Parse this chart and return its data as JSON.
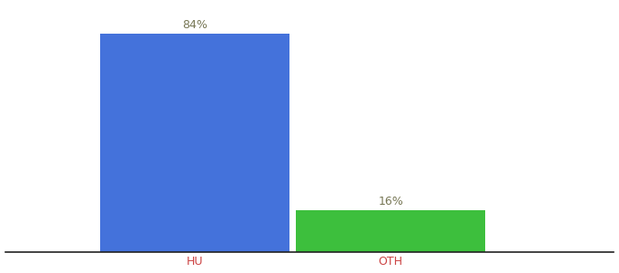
{
  "categories": [
    "HU",
    "OTH"
  ],
  "values": [
    84,
    16
  ],
  "bar_colors": [
    "#4472db",
    "#3dbf3d"
  ],
  "label_texts": [
    "84%",
    "16%"
  ],
  "label_color": "#777755",
  "tick_color": "#cc4444",
  "background_color": "#ffffff",
  "ylim": [
    0,
    95
  ],
  "bar_width": 0.28,
  "label_fontsize": 9,
  "tick_fontsize": 9
}
